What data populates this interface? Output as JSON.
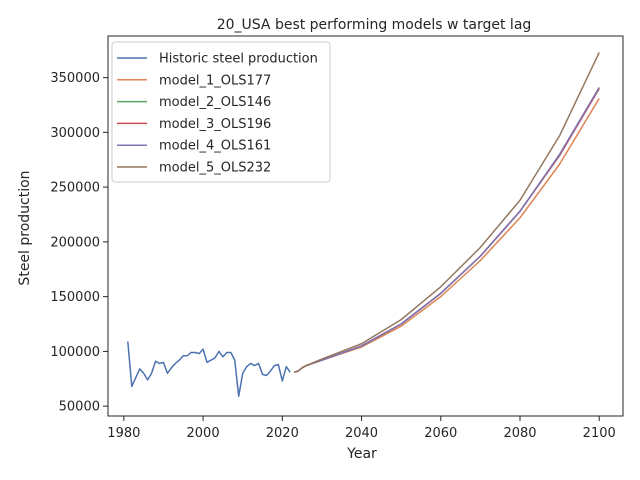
{
  "chart_data": {
    "type": "line",
    "title": "20_USA best performing models w target lag",
    "xlabel": "Year",
    "ylabel": "Steel production",
    "xlim": [
      1976,
      2106
    ],
    "ylim": [
      41000,
      388000
    ],
    "xticks": [
      1980,
      2000,
      2020,
      2040,
      2060,
      2080,
      2100
    ],
    "yticks": [
      50000,
      100000,
      150000,
      200000,
      250000,
      300000,
      350000
    ],
    "xtick_labels": [
      "1980",
      "2000",
      "2020",
      "2040",
      "2060",
      "2080",
      "2100"
    ],
    "ytick_labels": [
      "50000",
      "100000",
      "150000",
      "200000",
      "250000",
      "300000",
      "350000"
    ],
    "grid": false,
    "legend_position": "top-left",
    "series": [
      {
        "name": "Historic steel production",
        "color": "#4c72b0",
        "x": [
          1981,
          1982,
          1983,
          1984,
          1985,
          1986,
          1987,
          1988,
          1989,
          1990,
          1991,
          1992,
          1993,
          1994,
          1995,
          1996,
          1997,
          1998,
          1999,
          2000,
          2001,
          2002,
          2003,
          2004,
          2005,
          2006,
          2007,
          2008,
          2009,
          2010,
          2011,
          2012,
          2013,
          2014,
          2015,
          2016,
          2017,
          2018,
          2019,
          2020,
          2021,
          2022
        ],
        "y": [
          109000,
          68000,
          76000,
          84000,
          80000,
          74000,
          80000,
          91000,
          89000,
          90000,
          80000,
          85000,
          89000,
          92000,
          96000,
          96000,
          99000,
          99000,
          98000,
          102000,
          90000,
          92000,
          94000,
          100000,
          95000,
          99000,
          99000,
          92000,
          59000,
          80000,
          86000,
          89000,
          87000,
          89000,
          79000,
          78000,
          82000,
          87000,
          88000,
          73000,
          86000,
          81000
        ]
      },
      {
        "name": "model_1_OLS177",
        "color": "#dd8452",
        "x": [
          2023,
          2024,
          2025,
          2026,
          2030,
          2040,
          2050,
          2060,
          2070,
          2080,
          2090,
          2100
        ],
        "y": [
          81000,
          82000,
          85000,
          87000,
          92000,
          104000,
          123000,
          150000,
          183000,
          222000,
          271000,
          331000
        ]
      },
      {
        "name": "model_2_OLS146",
        "color": "#55a868",
        "x": [
          2023,
          2024,
          2025,
          2026,
          2030,
          2040,
          2050,
          2060,
          2070,
          2080,
          2090,
          2100
        ],
        "y": [
          81000,
          82000,
          85000,
          87000,
          92000,
          105000,
          125000,
          153000,
          187000,
          228000,
          279000,
          341000
        ]
      },
      {
        "name": "model_3_OLS196",
        "color": "#c44e52",
        "x": [
          2023,
          2024,
          2025,
          2026,
          2030,
          2040,
          2050,
          2060,
          2070,
          2080,
          2090,
          2100
        ],
        "y": [
          81000,
          82000,
          85000,
          87000,
          92000,
          105000,
          125000,
          153000,
          187000,
          228000,
          279000,
          340000
        ]
      },
      {
        "name": "model_4_OLS161",
        "color": "#8172b3",
        "x": [
          2023,
          2024,
          2025,
          2026,
          2030,
          2040,
          2050,
          2060,
          2070,
          2080,
          2090,
          2100
        ],
        "y": [
          81000,
          82000,
          85000,
          87000,
          92000,
          105000,
          125000,
          153000,
          187000,
          228000,
          280000,
          341000
        ]
      },
      {
        "name": "model_5_OLS232",
        "color": "#937860",
        "x": [
          2023,
          2024,
          2025,
          2026,
          2030,
          2040,
          2050,
          2060,
          2070,
          2080,
          2090,
          2100
        ],
        "y": [
          81000,
          82000,
          85000,
          87000,
          93000,
          107000,
          129000,
          159000,
          195000,
          238000,
          297000,
          373000
        ]
      }
    ]
  }
}
